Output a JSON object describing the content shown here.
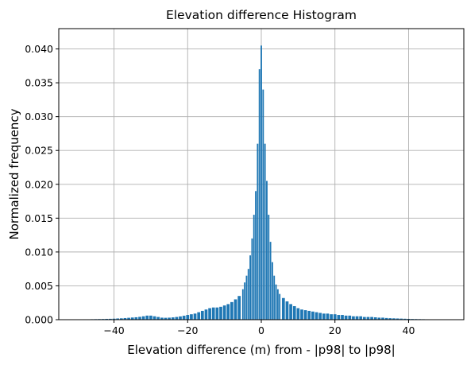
{
  "chart_data": {
    "type": "bar",
    "title": "Elevation difference Histogram",
    "xlabel": "Elevation difference (m) from - |p98| to |p98|",
    "ylabel": "Normalized frequency",
    "xlim": [
      -55,
      55
    ],
    "ylim": [
      0,
      0.043
    ],
    "xticks": [
      -40,
      -20,
      0,
      20,
      40
    ],
    "xtick_labels": [
      "−40",
      "−20",
      "0",
      "20",
      "40"
    ],
    "yticks": [
      0.0,
      0.005,
      0.01,
      0.015,
      0.02,
      0.025,
      0.03,
      0.035,
      0.04
    ],
    "ytick_labels": [
      "0.000",
      "0.005",
      "0.010",
      "0.015",
      "0.020",
      "0.025",
      "0.030",
      "0.035",
      "0.040"
    ],
    "grid": true,
    "bar_color": "#1f77b4",
    "x": [
      -50,
      -49,
      -48,
      -47,
      -46,
      -45,
      -44,
      -43,
      -42,
      -41,
      -40,
      -39,
      -38,
      -37,
      -36,
      -35,
      -34,
      -33,
      -32,
      -31,
      -30,
      -29,
      -28,
      -27,
      -26,
      -25,
      -24,
      -23,
      -22,
      -21,
      -20,
      -19,
      -18,
      -17,
      -16,
      -15,
      -14,
      -13,
      -12,
      -11,
      -10,
      -9,
      -8,
      -7,
      -6,
      -5,
      -4.5,
      -4,
      -3.5,
      -3,
      -2.5,
      -2,
      -1.5,
      -1,
      -0.5,
      0,
      0.5,
      1,
      1.5,
      2,
      2.5,
      3,
      3.5,
      4,
      4.5,
      5,
      6,
      7,
      8,
      9,
      10,
      11,
      12,
      13,
      14,
      15,
      16,
      17,
      18,
      19,
      20,
      21,
      22,
      23,
      24,
      25,
      26,
      27,
      28,
      29,
      30,
      31,
      32,
      33,
      34,
      35,
      36,
      37,
      38,
      39,
      40,
      41,
      42,
      43,
      44,
      45,
      46,
      47,
      48,
      49,
      50
    ],
    "values": [
      5e-05,
      5e-05,
      6e-05,
      6e-05,
      7e-05,
      8e-05,
      9e-05,
      0.0001,
      0.00012,
      0.00013,
      0.00015,
      0.00018,
      0.0002,
      0.00024,
      0.00028,
      0.00032,
      0.00036,
      0.00042,
      0.0005,
      0.0006,
      0.0006,
      0.0005,
      0.0004,
      0.0003,
      0.00028,
      0.0003,
      0.00034,
      0.0004,
      0.00048,
      0.00058,
      0.0007,
      0.0008,
      0.0009,
      0.0011,
      0.0013,
      0.0015,
      0.0017,
      0.0018,
      0.0018,
      0.0019,
      0.0021,
      0.0023,
      0.0026,
      0.003,
      0.0035,
      0.0045,
      0.0055,
      0.0065,
      0.0075,
      0.0095,
      0.012,
      0.0155,
      0.019,
      0.026,
      0.037,
      0.0405,
      0.034,
      0.026,
      0.0205,
      0.0155,
      0.0115,
      0.0085,
      0.0065,
      0.0052,
      0.0045,
      0.0038,
      0.0032,
      0.0027,
      0.0023,
      0.002,
      0.0017,
      0.0015,
      0.0014,
      0.0013,
      0.0012,
      0.0011,
      0.001,
      0.0009,
      0.0009,
      0.0008,
      0.0008,
      0.0007,
      0.0007,
      0.0006,
      0.0006,
      0.0005,
      0.0005,
      0.0005,
      0.0004,
      0.0004,
      0.0004,
      0.00035,
      0.0003,
      0.0003,
      0.00025,
      0.00022,
      0.0002,
      0.00018,
      0.00016,
      0.00014,
      0.00012,
      0.0001,
      9e-05,
      8e-05,
      7e-05,
      6e-05,
      5e-05,
      5e-05,
      4e-05,
      4e-05,
      4e-05
    ]
  }
}
